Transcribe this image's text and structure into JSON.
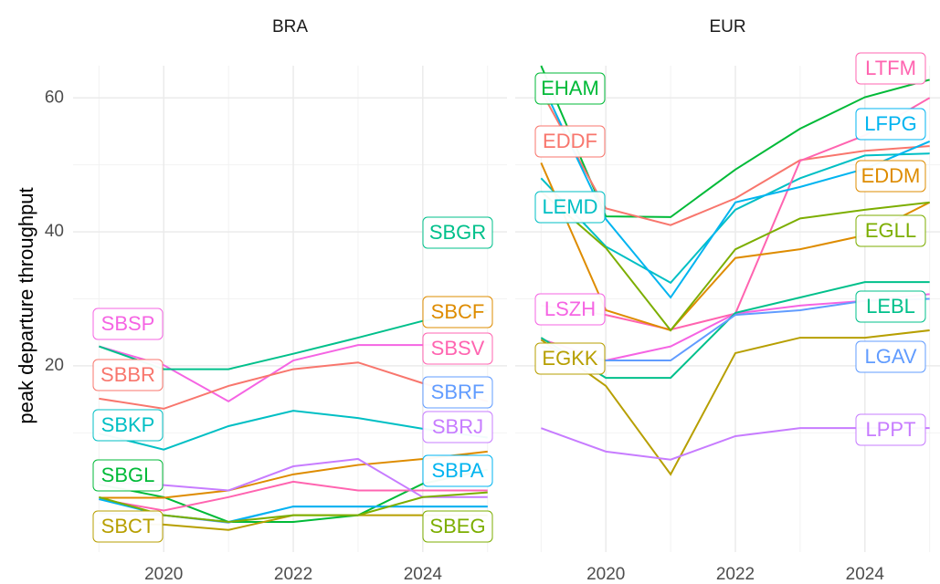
{
  "chart_data": [
    {
      "type": "line",
      "title": "BRA",
      "y_label": "peak departure throughput",
      "x": [
        2019,
        2020,
        2021,
        2022,
        2023,
        2024,
        2025
      ],
      "xlim": [
        2018.6,
        2025.3
      ],
      "xticks": [
        2020,
        2022,
        2024
      ],
      "ylim": [
        -7.8,
        64.8
      ],
      "yticks": [
        20,
        40,
        60
      ],
      "grid": true,
      "series": [
        {
          "name": "SBSP",
          "color": "#F564E3",
          "values": [
            22.9,
            20.1,
            14.7,
            20.8,
            23.1,
            23.1,
            23.5
          ]
        },
        {
          "name": "SBBR",
          "color": "#F8766D",
          "values": [
            15.1,
            13.6,
            17.0,
            19.5,
            20.5,
            17.4,
            14.7
          ]
        },
        {
          "name": "SBKP",
          "color": "#00BFC4",
          "values": [
            9.9,
            7.5,
            11.0,
            13.3,
            12.2,
            10.6,
            9.3
          ]
        },
        {
          "name": "SBGL",
          "color": "#00BA38",
          "values": [
            2.3,
            0.4,
            -3.3,
            -3.3,
            -2.3,
            2.4,
            4.5
          ]
        },
        {
          "name": "SBCT",
          "color": "#B79F00",
          "values": [
            -3.5,
            -3.7,
            -4.5,
            -2.3,
            -2.3,
            -2.3,
            -2.3
          ]
        },
        {
          "name": "SBGR",
          "color": "#00C08B",
          "values": [
            22.9,
            19.5,
            19.5,
            21.8,
            24.2,
            26.7,
            28.3
          ]
        },
        {
          "name": "SBCF",
          "color": "#DE8C00",
          "values": [
            0.3,
            0.3,
            1.4,
            3.8,
            5.2,
            6.1,
            7.2
          ]
        },
        {
          "name": "SBSV",
          "color": "#FF64B0",
          "values": [
            0.1,
            -1.6,
            0.4,
            2.7,
            1.4,
            1.4,
            1.4
          ]
        },
        {
          "name": "SBRF",
          "color": "#619CFF",
          "values": [
            -2.0,
            -2.3,
            -3.4,
            -1.0,
            -1.0,
            -1.0,
            -1.0
          ]
        },
        {
          "name": "SBRJ",
          "color": "#C77CFF",
          "values": [
            2.7,
            2.2,
            1.4,
            5.0,
            6.1,
            0.4,
            0.4
          ]
        },
        {
          "name": "SBPA",
          "color": "#00B4F0",
          "values": [
            0.1,
            -2.3,
            -3.3,
            -1.0,
            -1.0,
            -1.0,
            -1.0
          ]
        },
        {
          "name": "SBEG",
          "color": "#7CAE00",
          "values": [
            0.4,
            -2.3,
            -3.3,
            -2.3,
            -2.3,
            0.4,
            1.1
          ]
        }
      ]
    },
    {
      "type": "line",
      "title": "EUR",
      "x": [
        2019,
        2020,
        2021,
        2022,
        2023,
        2024,
        2025
      ],
      "xlim": [
        2018.6,
        2025.16
      ],
      "xticks": [
        2020,
        2022,
        2024
      ],
      "ylim": [
        -7.8,
        64.8
      ],
      "grid": true,
      "series": [
        {
          "name": "EHAM",
          "color": "#00BA38",
          "values": [
            64.8,
            42.3,
            42.2,
            49.3,
            55.4,
            60.1,
            62.7
          ]
        },
        {
          "name": "EDDF",
          "color": "#F8766D",
          "values": [
            61.0,
            43.5,
            41.0,
            45.0,
            50.7,
            52.1,
            52.8
          ]
        },
        {
          "name": "LEMD",
          "color": "#00BFC4",
          "values": [
            48.0,
            37.8,
            32.4,
            43.3,
            48.0,
            51.4,
            51.7
          ]
        },
        {
          "name": "LSZH",
          "color": "#F564E3",
          "values": [
            24.0,
            20.8,
            22.9,
            27.8,
            29.0,
            29.7,
            30.7
          ]
        },
        {
          "name": "EGKK",
          "color": "#B79F00",
          "values": [
            23.9,
            17.0,
            3.8,
            21.9,
            24.2,
            24.2,
            25.3
          ]
        },
        {
          "name": "LTFM",
          "color": "#FF64B0",
          "values": [
            29.0,
            27.6,
            25.4,
            27.8,
            50.6,
            54.4,
            60.0
          ]
        },
        {
          "name": "LFPG",
          "color": "#00B4F0",
          "values": [
            62.3,
            41.9,
            30.2,
            44.4,
            46.7,
            49.4,
            53.5
          ]
        },
        {
          "name": "EDDM",
          "color": "#DE8C00",
          "values": [
            50.3,
            28.3,
            25.3,
            36.1,
            37.4,
            39.5,
            44.4
          ]
        },
        {
          "name": "EGLL",
          "color": "#7CAE00",
          "values": [
            46.0,
            37.6,
            25.3,
            37.4,
            42.0,
            43.3,
            44.4
          ]
        },
        {
          "name": "LEBL",
          "color": "#00C08B",
          "values": [
            24.2,
            18.2,
            18.2,
            27.9,
            30.2,
            32.5,
            32.5
          ]
        },
        {
          "name": "LGAV",
          "color": "#619CFF",
          "values": [
            22.9,
            20.8,
            20.8,
            27.6,
            28.3,
            29.7,
            30.0
          ]
        },
        {
          "name": "LPPT",
          "color": "#C77CFF",
          "values": [
            10.7,
            7.2,
            6.0,
            9.5,
            10.7,
            10.7,
            10.7
          ]
        }
      ]
    }
  ]
}
